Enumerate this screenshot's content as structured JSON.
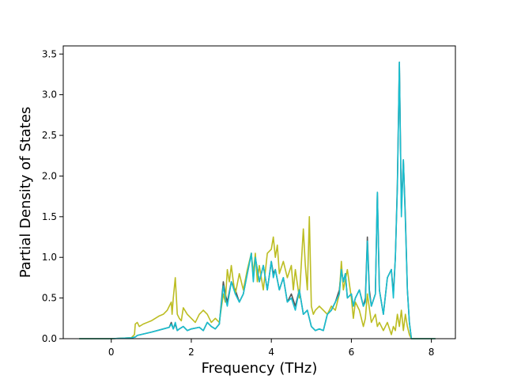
{
  "chart_data": {
    "type": "line",
    "title": "",
    "xlabel": "Frequency (THz)",
    "ylabel": "Partial Density of States",
    "xlim": [
      -1.2,
      8.6
    ],
    "ylim": [
      0.0,
      3.6
    ],
    "xticks": [
      0,
      2,
      4,
      6,
      8
    ],
    "yticks": [
      0.0,
      0.5,
      1.0,
      1.5,
      2.0,
      2.5,
      3.0,
      3.5
    ],
    "xtick_labels": [
      "0",
      "2",
      "4",
      "6",
      "8"
    ],
    "ytick_labels": [
      "0.0",
      "0.5",
      "1.0",
      "1.5",
      "2.0",
      "2.5",
      "3.0",
      "3.5"
    ],
    "grid": false,
    "legend": "none",
    "series": [
      {
        "color": "#555555",
        "x": [
          -0.8,
          0.0,
          0.5,
          0.6,
          0.65,
          1.0,
          1.3,
          1.45,
          1.5,
          1.55,
          1.6,
          1.65,
          1.7,
          1.8,
          1.9,
          2.0,
          2.2,
          2.3,
          2.4,
          2.5,
          2.6,
          2.7,
          2.8,
          2.85,
          2.9,
          3.0,
          3.1,
          3.2,
          3.3,
          3.4,
          3.5,
          3.55,
          3.6,
          3.7,
          3.8,
          3.9,
          4.0,
          4.05,
          4.1,
          4.2,
          4.3,
          4.4,
          4.5,
          4.6,
          4.7,
          4.8,
          4.9,
          5.0,
          5.1,
          5.2,
          5.3,
          5.4,
          5.5,
          5.6,
          5.7,
          5.75,
          5.8,
          5.85,
          5.9,
          6.0,
          6.05,
          6.1,
          6.2,
          6.3,
          6.35,
          6.4,
          6.45,
          6.5,
          6.6,
          6.65,
          6.7,
          6.8,
          6.9,
          7.0,
          7.05,
          7.1,
          7.15,
          7.2,
          7.25,
          7.3,
          7.35,
          7.4,
          7.45,
          7.5,
          7.6,
          8.1
        ],
        "y": [
          0.0,
          0.0,
          0.01,
          0.02,
          0.04,
          0.08,
          0.12,
          0.14,
          0.2,
          0.12,
          0.18,
          0.1,
          0.12,
          0.15,
          0.1,
          0.12,
          0.14,
          0.1,
          0.2,
          0.15,
          0.12,
          0.18,
          0.7,
          0.55,
          0.45,
          0.7,
          0.6,
          0.45,
          0.55,
          0.8,
          1.05,
          0.75,
          1.0,
          0.7,
          0.9,
          0.6,
          0.95,
          0.8,
          0.85,
          0.6,
          0.75,
          0.45,
          0.55,
          0.4,
          0.6,
          0.3,
          0.35,
          0.15,
          0.1,
          0.12,
          0.1,
          0.3,
          0.35,
          0.45,
          0.6,
          0.85,
          0.7,
          0.8,
          0.5,
          0.55,
          0.4,
          0.5,
          0.6,
          0.4,
          0.5,
          1.25,
          0.6,
          0.4,
          0.55,
          1.8,
          0.6,
          0.3,
          0.75,
          0.85,
          0.55,
          1.0,
          1.9,
          3.4,
          1.6,
          2.2,
          1.5,
          0.6,
          0.2,
          0.0,
          0.0,
          0.0
        ]
      },
      {
        "color": "#bcbd22",
        "x": [
          -0.8,
          0.0,
          0.5,
          0.58,
          0.6,
          0.65,
          0.7,
          0.8,
          0.9,
          1.0,
          1.1,
          1.2,
          1.3,
          1.4,
          1.5,
          1.52,
          1.55,
          1.6,
          1.65,
          1.7,
          1.75,
          1.8,
          1.9,
          2.0,
          2.1,
          2.2,
          2.3,
          2.4,
          2.5,
          2.6,
          2.7,
          2.8,
          2.85,
          2.9,
          2.95,
          3.0,
          3.05,
          3.1,
          3.2,
          3.3,
          3.4,
          3.5,
          3.55,
          3.6,
          3.65,
          3.7,
          3.8,
          3.9,
          4.0,
          4.05,
          4.1,
          4.15,
          4.2,
          4.3,
          4.4,
          4.5,
          4.55,
          4.6,
          4.7,
          4.8,
          4.85,
          4.9,
          4.95,
          5.0,
          5.05,
          5.1,
          5.2,
          5.3,
          5.4,
          5.5,
          5.6,
          5.7,
          5.75,
          5.8,
          5.9,
          6.0,
          6.05,
          6.1,
          6.2,
          6.3,
          6.35,
          6.4,
          6.5,
          6.6,
          6.65,
          6.7,
          6.8,
          6.9,
          7.0,
          7.05,
          7.1,
          7.15,
          7.2,
          7.25,
          7.3,
          7.35,
          7.4,
          7.45,
          7.5,
          7.6,
          8.1
        ],
        "y": [
          0.0,
          0.0,
          0.01,
          0.05,
          0.18,
          0.2,
          0.15,
          0.18,
          0.2,
          0.22,
          0.25,
          0.28,
          0.3,
          0.35,
          0.45,
          0.3,
          0.5,
          0.75,
          0.3,
          0.25,
          0.22,
          0.38,
          0.3,
          0.25,
          0.2,
          0.3,
          0.35,
          0.3,
          0.2,
          0.25,
          0.2,
          0.55,
          0.45,
          0.85,
          0.7,
          0.9,
          0.7,
          0.55,
          0.8,
          0.6,
          0.85,
          1.05,
          0.8,
          1.05,
          0.7,
          0.9,
          0.6,
          1.05,
          1.1,
          1.25,
          1.0,
          1.15,
          0.8,
          0.95,
          0.75,
          0.9,
          0.6,
          0.85,
          0.5,
          1.35,
          0.9,
          0.6,
          1.5,
          0.4,
          0.3,
          0.35,
          0.4,
          0.35,
          0.3,
          0.4,
          0.35,
          0.55,
          0.95,
          0.6,
          0.85,
          0.5,
          0.25,
          0.45,
          0.35,
          0.15,
          0.25,
          0.55,
          0.2,
          0.3,
          0.15,
          0.2,
          0.1,
          0.2,
          0.05,
          0.15,
          0.1,
          0.3,
          0.15,
          0.35,
          0.1,
          0.3,
          0.15,
          0.05,
          0.0,
          0.0,
          0.0
        ]
      },
      {
        "color": "#17becf",
        "x": [
          -0.8,
          0.0,
          0.5,
          0.6,
          0.65,
          1.0,
          1.3,
          1.45,
          1.5,
          1.55,
          1.6,
          1.65,
          1.7,
          1.8,
          1.9,
          2.0,
          2.2,
          2.3,
          2.4,
          2.5,
          2.6,
          2.7,
          2.8,
          2.85,
          2.9,
          3.0,
          3.1,
          3.2,
          3.3,
          3.4,
          3.5,
          3.55,
          3.6,
          3.7,
          3.8,
          3.9,
          4.0,
          4.05,
          4.1,
          4.2,
          4.3,
          4.4,
          4.5,
          4.6,
          4.7,
          4.8,
          4.9,
          5.0,
          5.1,
          5.2,
          5.3,
          5.4,
          5.5,
          5.6,
          5.7,
          5.75,
          5.8,
          5.85,
          5.9,
          6.0,
          6.05,
          6.1,
          6.2,
          6.3,
          6.35,
          6.4,
          6.45,
          6.5,
          6.6,
          6.65,
          6.7,
          6.8,
          6.9,
          7.0,
          7.05,
          7.1,
          7.15,
          7.2,
          7.25,
          7.3,
          7.35,
          7.4,
          7.45,
          7.5,
          7.6,
          8.1
        ],
        "y": [
          0.0,
          0.0,
          0.01,
          0.02,
          0.04,
          0.08,
          0.12,
          0.14,
          0.18,
          0.12,
          0.2,
          0.1,
          0.12,
          0.15,
          0.1,
          0.12,
          0.14,
          0.1,
          0.2,
          0.15,
          0.12,
          0.18,
          0.65,
          0.5,
          0.4,
          0.7,
          0.55,
          0.45,
          0.55,
          0.8,
          1.05,
          0.7,
          1.0,
          0.7,
          0.9,
          0.6,
          0.95,
          0.75,
          0.85,
          0.6,
          0.75,
          0.45,
          0.5,
          0.35,
          0.6,
          0.3,
          0.35,
          0.15,
          0.1,
          0.12,
          0.1,
          0.3,
          0.35,
          0.45,
          0.55,
          0.85,
          0.7,
          0.8,
          0.5,
          0.55,
          0.4,
          0.5,
          0.6,
          0.4,
          0.45,
          1.2,
          0.55,
          0.4,
          0.55,
          1.8,
          0.6,
          0.3,
          0.75,
          0.85,
          0.5,
          1.0,
          1.85,
          3.4,
          1.5,
          2.2,
          1.45,
          0.6,
          0.2,
          0.0,
          0.0,
          0.0
        ]
      }
    ]
  }
}
